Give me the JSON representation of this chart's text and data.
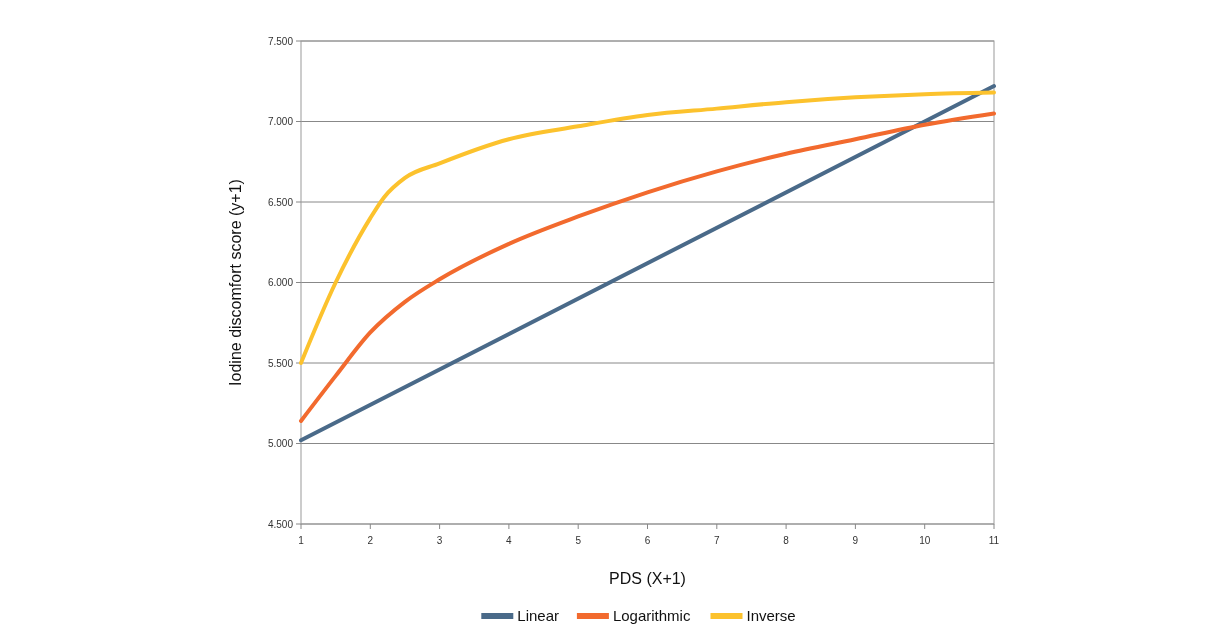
{
  "chart_data": {
    "type": "line",
    "xlabel": "PDS (X+1)",
    "ylabel": "Iodine discomfort score (y+1)",
    "xlim": [
      1,
      11
    ],
    "xticks": [
      1,
      2,
      3,
      4,
      5,
      6,
      7,
      8,
      9,
      10,
      11
    ],
    "ylim": [
      4.5,
      7.5
    ],
    "yticks": [
      {
        "value": 4.5,
        "label": "4.500"
      },
      {
        "value": 5,
        "label": "5.000"
      },
      {
        "value": 5.5,
        "label": "5.500"
      },
      {
        "value": 6,
        "label": "6.000"
      },
      {
        "value": 6.5,
        "label": "6.500"
      },
      {
        "value": 7,
        "label": "7.000"
      },
      {
        "value": 7.5,
        "label": "7.500"
      }
    ],
    "grid": "y",
    "legend": "bottom",
    "line_style": "solid",
    "series": [
      {
        "name": "Linear",
        "color": "#4a6a89",
        "x": [
          1,
          11
        ],
        "values": [
          5.02,
          7.22
        ]
      },
      {
        "name": "Logarithmic",
        "color": "#f26a2e",
        "x": [
          1,
          1.5,
          2,
          2.5,
          3,
          4,
          5,
          6,
          7,
          8,
          9,
          10,
          11
        ],
        "values": [
          5.14,
          5.42,
          5.69,
          5.88,
          6.02,
          6.24,
          6.41,
          6.56,
          6.69,
          6.8,
          6.89,
          6.98,
          7.05
        ]
      },
      {
        "name": "Inverse",
        "color": "#fcc22d",
        "x": [
          1,
          1.5,
          2,
          2.2,
          2.5,
          3,
          4,
          5,
          6,
          7,
          8,
          9,
          10,
          11
        ],
        "values": [
          5.5,
          6.0,
          6.4,
          6.53,
          6.65,
          6.74,
          6.89,
          6.97,
          7.04,
          7.08,
          7.12,
          7.15,
          7.17,
          7.18
        ]
      }
    ]
  }
}
